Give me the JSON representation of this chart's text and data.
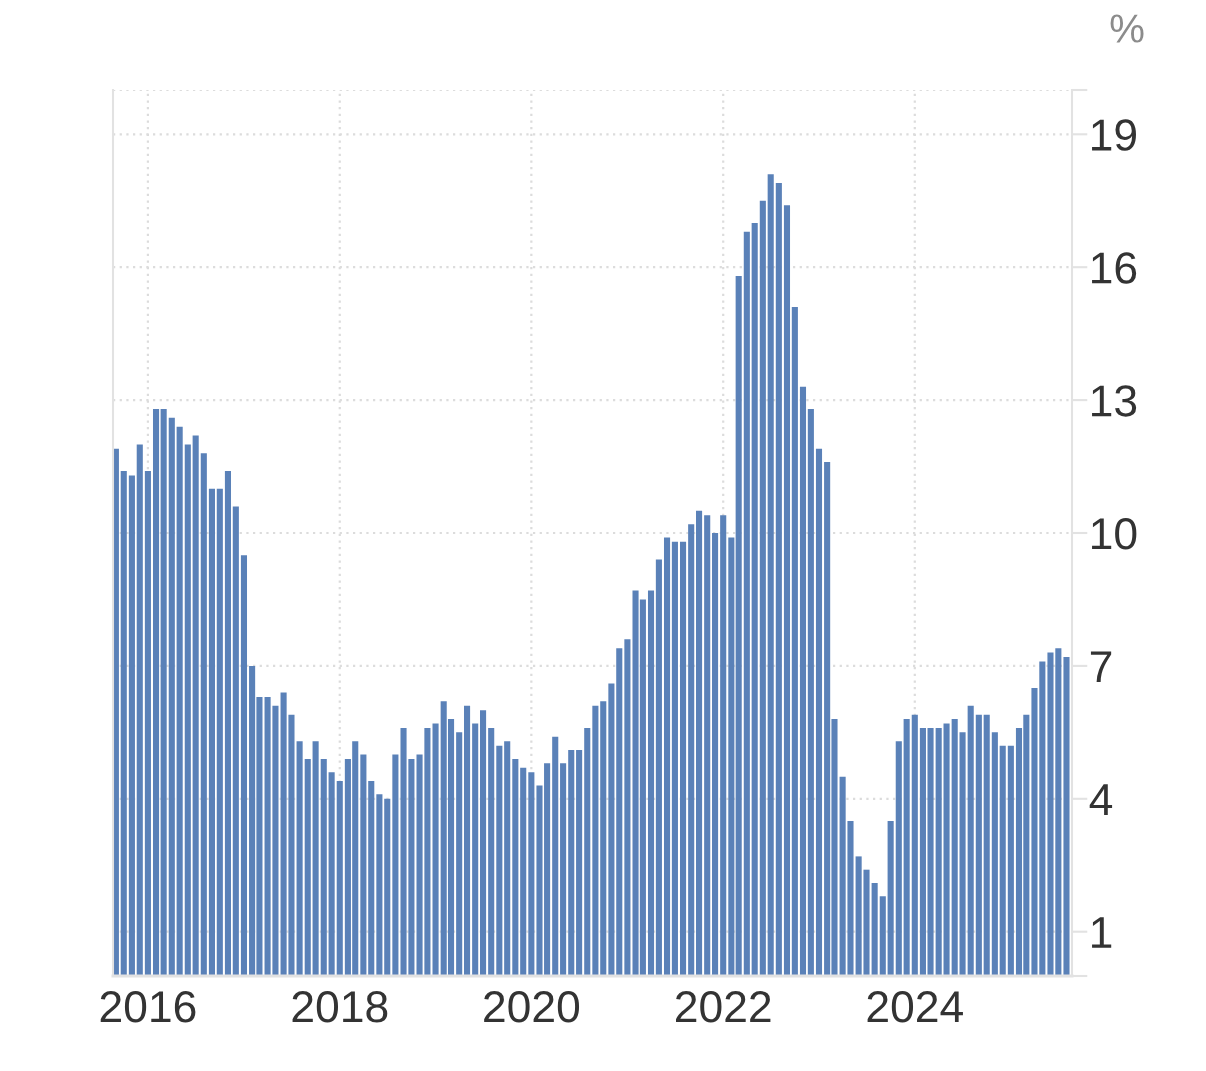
{
  "chart_data": {
    "type": "bar",
    "ylabel": "%",
    "x": [
      "2015-09",
      "2015-10",
      "2015-11",
      "2015-12",
      "2016-01",
      "2016-02",
      "2016-03",
      "2016-04",
      "2016-05",
      "2016-06",
      "2016-07",
      "2016-08",
      "2016-09",
      "2016-10",
      "2016-11",
      "2016-12",
      "2017-01",
      "2017-02",
      "2017-03",
      "2017-04",
      "2017-05",
      "2017-06",
      "2017-07",
      "2017-08",
      "2017-09",
      "2017-10",
      "2017-11",
      "2017-12",
      "2018-01",
      "2018-02",
      "2018-03",
      "2018-04",
      "2018-05",
      "2018-06",
      "2018-07",
      "2018-08",
      "2018-09",
      "2018-10",
      "2018-11",
      "2018-12",
      "2019-01",
      "2019-02",
      "2019-03",
      "2019-04",
      "2019-05",
      "2019-06",
      "2019-07",
      "2019-08",
      "2019-09",
      "2019-10",
      "2019-11",
      "2019-12",
      "2020-01",
      "2020-02",
      "2020-03",
      "2020-04",
      "2020-05",
      "2020-06",
      "2020-07",
      "2020-08",
      "2020-09",
      "2020-10",
      "2020-11",
      "2020-12",
      "2021-01",
      "2021-02",
      "2021-03",
      "2021-04",
      "2021-05",
      "2021-06",
      "2021-07",
      "2021-08",
      "2021-09",
      "2021-10",
      "2021-11",
      "2021-12",
      "2022-01",
      "2022-02",
      "2022-03",
      "2022-04",
      "2022-05",
      "2022-06",
      "2022-07",
      "2022-08",
      "2022-09",
      "2022-10",
      "2022-11",
      "2022-12",
      "2023-01",
      "2023-02",
      "2023-03",
      "2023-04",
      "2023-05",
      "2023-06",
      "2023-07",
      "2023-08",
      "2023-09",
      "2023-10",
      "2023-11",
      "2023-12",
      "2024-01",
      "2024-02",
      "2024-03",
      "2024-04",
      "2024-05",
      "2024-06",
      "2024-07",
      "2024-08",
      "2024-09",
      "2024-10",
      "2024-11",
      "2024-12",
      "2025-01",
      "2025-02",
      "2025-03",
      "2025-04",
      "2025-05",
      "2025-06",
      "2025-07",
      "2025-08"
    ],
    "values": [
      11.9,
      11.4,
      11.3,
      12.0,
      11.4,
      12.8,
      12.8,
      12.6,
      12.4,
      12.0,
      12.2,
      11.8,
      11.0,
      11.0,
      11.4,
      10.6,
      9.5,
      7.0,
      6.3,
      6.3,
      6.1,
      6.4,
      5.9,
      5.3,
      4.9,
      5.3,
      4.9,
      4.6,
      4.4,
      4.9,
      5.3,
      5.0,
      4.4,
      4.1,
      4.0,
      5.0,
      5.6,
      4.9,
      5.0,
      5.6,
      5.7,
      6.2,
      5.8,
      5.5,
      6.1,
      5.7,
      6.0,
      5.6,
      5.2,
      5.3,
      4.9,
      4.7,
      4.6,
      4.3,
      4.8,
      5.4,
      4.8,
      5.1,
      5.1,
      5.6,
      6.1,
      6.2,
      6.6,
      7.4,
      7.6,
      8.7,
      8.5,
      8.7,
      9.4,
      9.9,
      9.8,
      9.8,
      10.2,
      10.5,
      10.4,
      10.0,
      10.4,
      9.9,
      15.8,
      16.8,
      17.0,
      17.5,
      18.1,
      17.9,
      17.4,
      15.1,
      13.3,
      12.8,
      11.9,
      11.6,
      5.8,
      4.5,
      3.5,
      2.7,
      2.4,
      2.1,
      1.8,
      3.5,
      5.3,
      5.8,
      5.9,
      5.6,
      5.6,
      5.6,
      5.7,
      5.8,
      5.5,
      6.1,
      5.9,
      5.9,
      5.5,
      5.2,
      5.2,
      5.6,
      5.9,
      6.5,
      7.1,
      7.3,
      7.4,
      7.2
    ],
    "color": "#5a81b8",
    "xlim": [
      "2015-08-21",
      "2025-08-22"
    ],
    "xticks": [
      "2016",
      "2018",
      "2020",
      "2022",
      "2024"
    ],
    "ylim": [
      0,
      20
    ],
    "yticks": [
      {
        "value": 0,
        "label": null
      },
      1,
      4,
      7,
      10,
      13,
      16,
      19,
      {
        "value": 20,
        "label": null
      }
    ],
    "grid": true
  }
}
